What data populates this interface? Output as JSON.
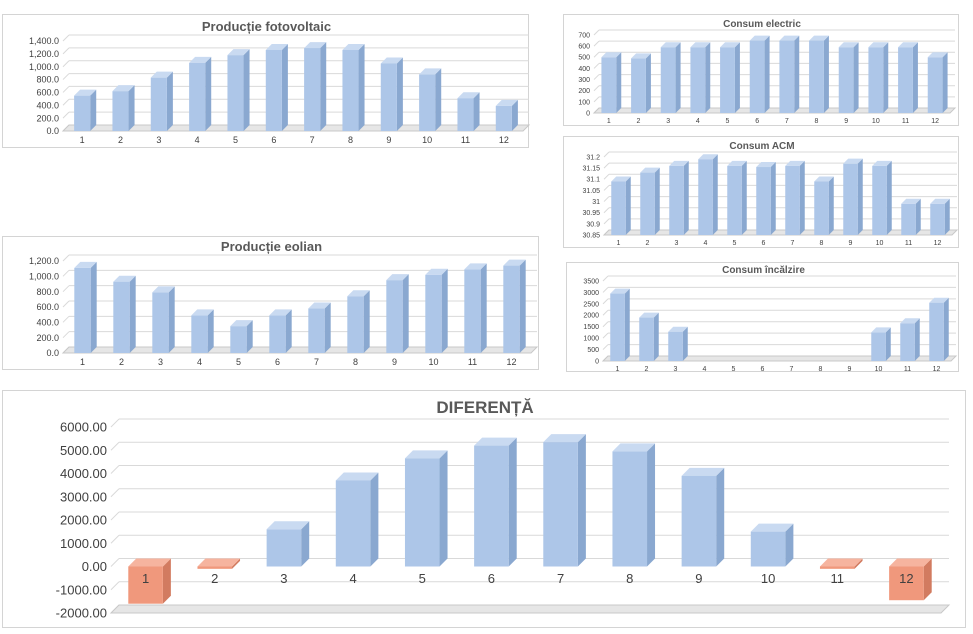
{
  "colors": {
    "bar": "#adc6e8",
    "bar_side": "#8aa8d0",
    "bar_top": "#c9daf1",
    "negative": "#f0987c",
    "negative_side": "#d27b60",
    "grid": "#d9d9d9",
    "floor": "#e6e6e6"
  },
  "chart_data": [
    {
      "id": "fotovoltaic",
      "type": "bar",
      "title": "Producție fotovoltaic",
      "categories": [
        "1",
        "2",
        "3",
        "4",
        "5",
        "6",
        "7",
        "8",
        "9",
        "10",
        "11",
        "12"
      ],
      "values": [
        550,
        620,
        830,
        1060,
        1180,
        1260,
        1290,
        1260,
        1050,
        880,
        510,
        390
      ],
      "ylim": [
        0,
        1400
      ],
      "yticks": [
        "0.0",
        "200.0",
        "400.0",
        "600.0",
        "800.0",
        "1,000.0",
        "1,200.0",
        "1,400.0"
      ],
      "grid": true
    },
    {
      "id": "electric",
      "type": "bar",
      "title": "Consum electric",
      "categories": [
        "1",
        "2",
        "3",
        "4",
        "5",
        "6",
        "7",
        "8",
        "9",
        "10",
        "11",
        "12"
      ],
      "values": [
        500,
        490,
        590,
        590,
        590,
        650,
        650,
        650,
        590,
        590,
        590,
        500
      ],
      "ylim": [
        0,
        700
      ],
      "yticks": [
        "0",
        "100",
        "200",
        "300",
        "400",
        "500",
        "600",
        "700"
      ],
      "grid": true
    },
    {
      "id": "acm",
      "type": "bar",
      "title": "Consum ACM",
      "categories": [
        "1",
        "2",
        "3",
        "4",
        "5",
        "6",
        "7",
        "8",
        "9",
        "10",
        "11",
        "12"
      ],
      "values": [
        31.09,
        31.13,
        31.16,
        31.19,
        31.16,
        31.155,
        31.16,
        31.09,
        31.17,
        31.16,
        30.99,
        30.99
      ],
      "ylim": [
        30.85,
        31.2
      ],
      "yticks": [
        "30.85",
        "30.9",
        "30.95",
        "31",
        "31.05",
        "31.1",
        "31.15",
        "31.2"
      ],
      "grid": true
    },
    {
      "id": "eolian",
      "type": "bar",
      "title": "Producție eolian",
      "categories": [
        "1",
        "2",
        "3",
        "4",
        "5",
        "6",
        "7",
        "8",
        "9",
        "10",
        "11",
        "12"
      ],
      "values": [
        1110,
        930,
        790,
        490,
        350,
        490,
        580,
        740,
        950,
        1020,
        1090,
        1140
      ],
      "ylim": [
        0,
        1200
      ],
      "yticks": [
        "0.0",
        "200.0",
        "400.0",
        "600.0",
        "800.0",
        "1,000.0",
        "1,200.0"
      ],
      "grid": true
    },
    {
      "id": "incalzire",
      "type": "bar",
      "title": "Consum încălzire",
      "categories": [
        "1",
        "2",
        "3",
        "4",
        "5",
        "6",
        "7",
        "8",
        "9",
        "10",
        "11",
        "12"
      ],
      "values": [
        2950,
        1900,
        1280,
        0,
        0,
        0,
        0,
        0,
        0,
        1250,
        1650,
        2550
      ],
      "ylim": [
        0,
        3500
      ],
      "yticks": [
        "0",
        "500",
        "1000",
        "1500",
        "2000",
        "2500",
        "3000",
        "3500"
      ],
      "grid": true
    },
    {
      "id": "diferenta",
      "type": "bar",
      "title": "DIFERENȚĂ",
      "categories": [
        "1",
        "2",
        "3",
        "4",
        "5",
        "6",
        "7",
        "8",
        "9",
        "10",
        "11",
        "12"
      ],
      "values": [
        -1600,
        -100,
        1600,
        3700,
        4650,
        5200,
        5350,
        4950,
        3900,
        1500,
        -100,
        -1450
      ],
      "ylim": [
        -2000,
        6000
      ],
      "yticks": [
        "-2000.00",
        "-1000.00",
        "0.00",
        "1000.00",
        "2000.00",
        "3000.00",
        "4000.00",
        "5000.00",
        "6000.00"
      ],
      "grid": true
    }
  ]
}
